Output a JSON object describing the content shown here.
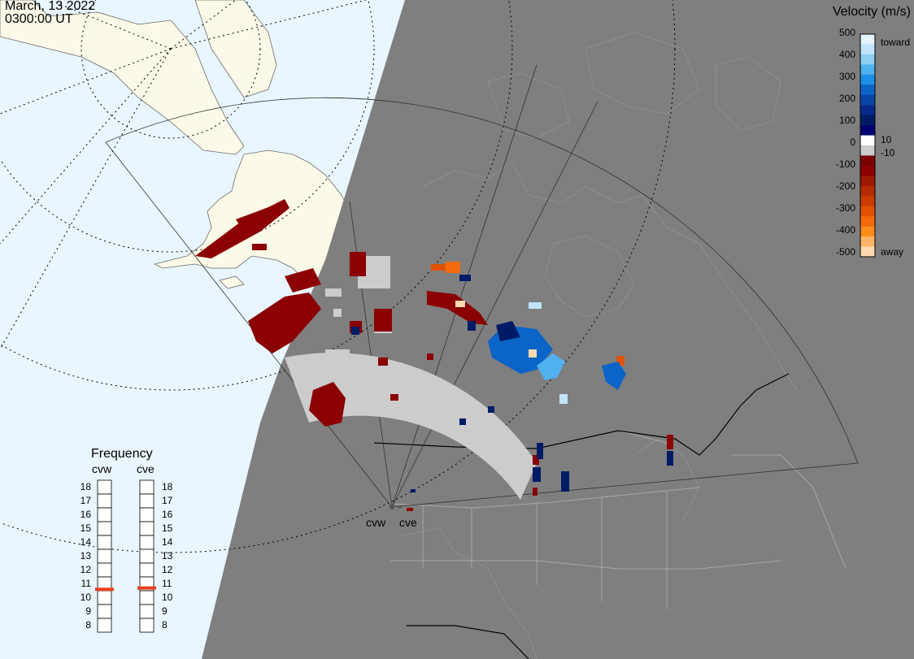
{
  "header": {
    "date": "March, 13 2022",
    "time": "0300:00 UT"
  },
  "colorbar": {
    "title": "Velocity (m/s)",
    "ticks": [
      "500",
      "400",
      "300",
      "200",
      "100",
      "0",
      "-100",
      "-200",
      "-300",
      "-400",
      "-500"
    ],
    "labels": {
      "toward": "toward",
      "away": "away",
      "pos_threshold": "10",
      "neg_threshold": "-10"
    },
    "colors": [
      "#e3f4ff",
      "#bfe4fb",
      "#8ccff5",
      "#4fb1ee",
      "#1e8fe6",
      "#0b65c8",
      "#0846a8",
      "#062b8a",
      "#001b66",
      "#000070",
      "#ffffff",
      "#cccccc",
      "#7a0000",
      "#8b0000",
      "#9e1a00",
      "#b52b00",
      "#c93b00",
      "#e05200",
      "#f26a0c",
      "#ff8c1a",
      "#ffb366",
      "#ffd9b0"
    ]
  },
  "frequency": {
    "title": "Frequency",
    "radars": [
      {
        "name": "cvw",
        "value_mhz": 10.6,
        "marker_color": "#e8401c"
      },
      {
        "name": "cve",
        "value_mhz": 10.7,
        "marker_color": "#e8401c"
      }
    ],
    "scale": [
      "18",
      "17",
      "16",
      "15",
      "14",
      "13",
      "12",
      "11",
      "10",
      "9",
      "8"
    ]
  },
  "radar_sites": [
    {
      "name": "cvw"
    },
    {
      "name": "cve"
    }
  ],
  "map_colors": {
    "ocean": "#e9f6ff",
    "land_day": "#fbf9e8",
    "night": "#7f7f7f",
    "grid": "#000000",
    "ground_scatter": "#cccccc"
  }
}
